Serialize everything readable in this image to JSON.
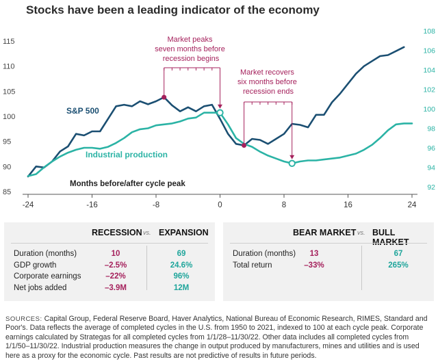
{
  "chart_data": {
    "type": "line",
    "title": "Stocks have been a leading indicator of the economy",
    "xlabel": "Months before/after cycle peak",
    "x_ticks": [
      -24,
      -16,
      -8,
      0,
      8,
      16,
      24
    ],
    "xlim": [
      -24,
      24
    ],
    "y_left": {
      "ticks": [
        85,
        90,
        95,
        100,
        105,
        110,
        115
      ],
      "ylim": [
        85,
        115
      ]
    },
    "y_right": {
      "ticks": [
        92,
        94,
        96,
        98,
        100,
        102,
        104,
        106,
        108
      ],
      "ylim": [
        92,
        108
      ]
    },
    "series": [
      {
        "name": "S&P 500",
        "axis": "left",
        "color": "#1b4f72",
        "x": [
          -24,
          -23,
          -22,
          -21,
          -20,
          -19,
          -18,
          -17,
          -16,
          -15,
          -14,
          -13,
          -12,
          -11,
          -10,
          -9,
          -8,
          -7,
          -6,
          -5,
          -4,
          -3,
          -2,
          -1,
          0,
          1,
          2,
          3,
          4,
          5,
          6,
          7,
          8,
          9,
          10,
          11,
          12,
          13,
          14,
          15,
          16,
          17,
          18,
          19,
          20,
          21,
          22,
          23
        ],
        "y": [
          88,
          90,
          89.8,
          91,
          93,
          94,
          96.5,
          96.2,
          97,
          97,
          99.5,
          102,
          102.3,
          102,
          103,
          102.4,
          103,
          103.8,
          102.2,
          101,
          101.8,
          101,
          102,
          102.3,
          99.5,
          96.5,
          94.5,
          94.2,
          95.5,
          95.3,
          94.5,
          95.5,
          96.5,
          98.5,
          98.3,
          97.8,
          100.3,
          100.3,
          102.8,
          104.5,
          106.5,
          108.5,
          110,
          111,
          112,
          112.2,
          113,
          113.8
        ]
      },
      {
        "name": "Industrial production",
        "axis": "right",
        "color": "#2bb3a5",
        "x": [
          -24,
          -23,
          -22,
          -21,
          -20,
          -19,
          -18,
          -17,
          -16,
          -15,
          -14,
          -13,
          -12,
          -11,
          -10,
          -9,
          -8,
          -7,
          -6,
          -5,
          -4,
          -3,
          -2,
          -1,
          0,
          1,
          2,
          3,
          4,
          5,
          6,
          7,
          8,
          9,
          10,
          11,
          12,
          13,
          14,
          15,
          16,
          17,
          18,
          19,
          20,
          21,
          22,
          23,
          24
        ],
        "y": [
          93.1,
          93.3,
          94,
          94.6,
          95.1,
          95.5,
          95.8,
          96.0,
          96.0,
          95.9,
          96.1,
          96.5,
          97.0,
          97.6,
          97.9,
          98.0,
          98.3,
          98.4,
          98.5,
          98.7,
          99.0,
          99.1,
          99.6,
          99.6,
          99.6,
          98.4,
          97.0,
          96.4,
          96.1,
          95.6,
          95.2,
          94.9,
          94.6,
          94.4,
          94.6,
          94.7,
          94.7,
          94.8,
          94.9,
          95.0,
          95.2,
          95.4,
          95.8,
          96.3,
          97.0,
          97.8,
          98.4,
          98.5,
          98.5
        ]
      }
    ],
    "annotations": [
      {
        "text": "Market peaks seven months before recession begins",
        "x_start": -7,
        "x_end": 0
      },
      {
        "text": "Market recovers six months before recession ends",
        "x_start": 3,
        "x_end": 9
      }
    ],
    "series_labels": [
      "S&P 500",
      "Industrial production"
    ]
  },
  "colors": {
    "sp500": "#1b4f72",
    "industrial": "#2bb3a5",
    "marker_red": "#a5215c",
    "axis": "#555555"
  },
  "tables": {
    "left": {
      "header_a": "RECESSION",
      "vs": "vs.",
      "header_b": "EXPANSION",
      "rows": [
        {
          "label": "Duration (months)",
          "a": "10",
          "b": "69"
        },
        {
          "label": "GDP growth",
          "a": "–2.5%",
          "b": "24.6%"
        },
        {
          "label": "Corporate earnings",
          "a": "–22%",
          "b": "96%"
        },
        {
          "label": "Net jobs added",
          "a": "–3.9M",
          "b": "12M"
        }
      ]
    },
    "right": {
      "header_a": "BEAR MARKET",
      "vs": "vs.",
      "header_b": "BULL MARKET",
      "rows": [
        {
          "label": "Duration (months)",
          "a": "13",
          "b": "67"
        },
        {
          "label": "Total return",
          "a": "–33%",
          "b": "265%"
        }
      ]
    }
  },
  "sources": {
    "label": "SOURCES:",
    "text": "Capital Group, Federal Reserve Board, Haver Analytics, National Bureau of Economic Research, RIMES, Standard and Poor's. Data reflects the average of completed cycles in the U.S. from 1950 to 2021, indexed to 100 at each cycle peak. Corporate earnings calculated by Strategas for all completed cycles from 1/1/28–11/30/22. Other data includes all completed cycles from 1/1/50–11/30/22. Industrial production measures the change in output produced by manufacturers, mines and utilities and is used here as a proxy for the economic cycle. Past results are not predictive of results in future periods."
  }
}
